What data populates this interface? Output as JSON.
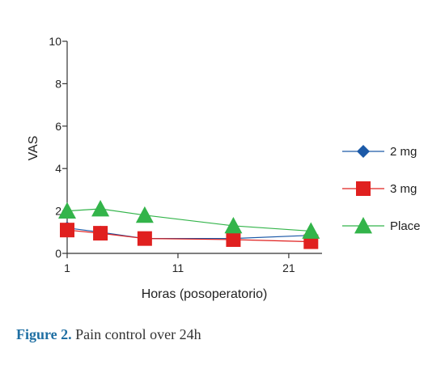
{
  "chart_data": {
    "type": "line",
    "title": "",
    "xlabel": "Horas (posoperatorio)",
    "ylabel": "VAS",
    "xlim": [
      1,
      24
    ],
    "ylim": [
      0,
      10
    ],
    "xticks": [
      "1",
      "11",
      "21"
    ],
    "yticks": [
      "0",
      "2",
      "4",
      "6",
      "8",
      "10"
    ],
    "grid": false,
    "legend_position": "right",
    "series": [
      {
        "name": "2 mg",
        "color": "#1c5aa8",
        "marker": "diamond",
        "x": [
          1,
          4,
          8,
          16,
          23
        ],
        "y": [
          1.2,
          1.0,
          0.7,
          0.7,
          0.85
        ]
      },
      {
        "name": "3 mg",
        "color": "#e0201f",
        "marker": "square",
        "x": [
          1,
          4,
          8,
          16,
          23
        ],
        "y": [
          1.1,
          0.95,
          0.7,
          0.65,
          0.55
        ]
      },
      {
        "name": "Place",
        "color": "#33b44a",
        "marker": "triangle",
        "x": [
          1,
          4,
          8,
          16,
          23
        ],
        "y": [
          2.0,
          2.1,
          1.8,
          1.3,
          1.05
        ]
      }
    ]
  },
  "caption": {
    "label": "Figure 2.",
    "text": "Pain control over 24h"
  }
}
